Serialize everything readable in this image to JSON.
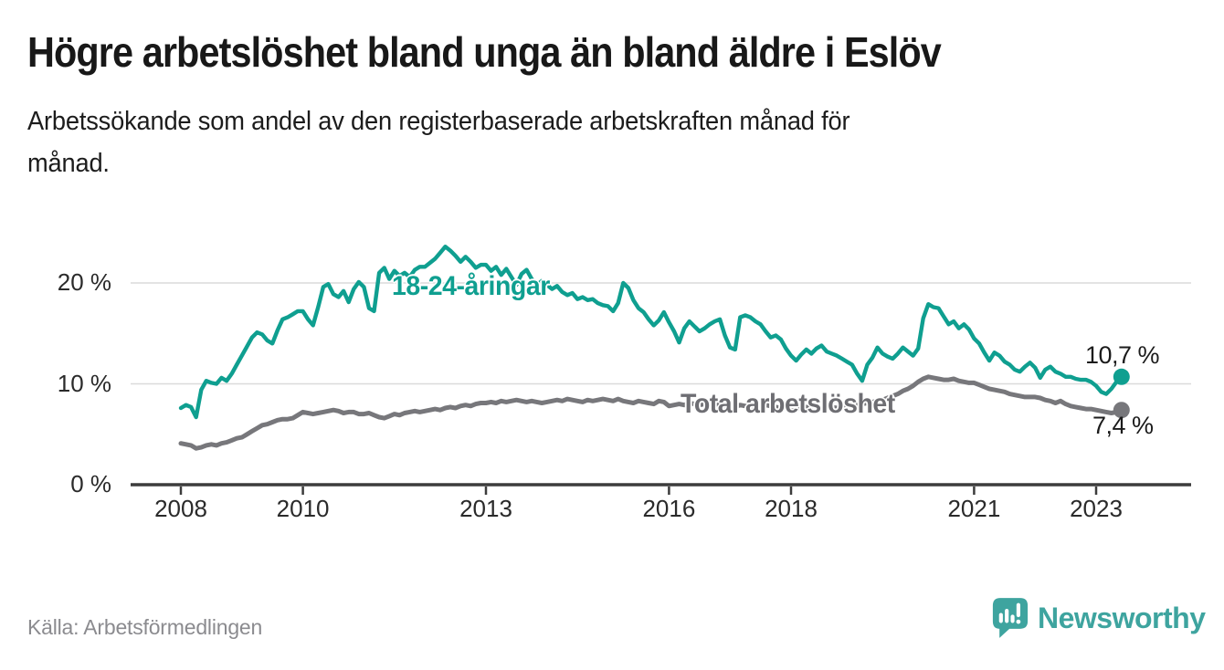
{
  "chart_data": {
    "type": "line",
    "title": "Högre arbetslöshet bland unga än bland äldre i Eslöv",
    "subtitle": "Arbetssökande som andel av den registerbaserade arbetskraften månad för månad.",
    "subtitle_lines": [
      "Arbetssökande som andel av den registerbaserade arbetskraften månad för",
      "månad."
    ],
    "source": "Källa: Arbetsförmedlingen",
    "x_unit": "month",
    "x_range": "Jan 2008 – mid 2023",
    "x_start_year": 2008,
    "x_tick_years": [
      2008,
      2010,
      2013,
      2016,
      2018,
      2021,
      2023
    ],
    "y_ticks": [
      {
        "value": 0,
        "label": "0 %"
      },
      {
        "value": 10,
        "label": "10 %"
      },
      {
        "value": 20,
        "label": "20 %"
      }
    ],
    "ylim": [
      0,
      24.5
    ],
    "grid": "horizontal-only",
    "grid_color": "#dadada",
    "axis_color": "#3c3c3c",
    "legend_position": "inline-labels-on-lines",
    "series": [
      {
        "id": "young",
        "label": "18-24-åringar",
        "color": "#0f9f90",
        "label_color": "#0f9f90",
        "line_width": 4.4,
        "end_label": "10,7 %",
        "end_value": 10.7,
        "values": [
          7.6,
          7.9,
          7.7,
          6.7,
          9.4,
          10.3,
          10.1,
          10.0,
          10.6,
          10.3,
          11.0,
          11.9,
          12.8,
          13.7,
          14.6,
          15.1,
          14.9,
          14.3,
          14.0,
          15.3,
          16.4,
          16.6,
          16.9,
          17.2,
          17.2,
          16.4,
          15.8,
          17.6,
          19.6,
          19.9,
          18.9,
          18.6,
          19.2,
          18.1,
          19.4,
          20.1,
          19.6,
          17.5,
          17.2,
          21.0,
          21.5,
          20.4,
          21.2,
          20.7,
          21.0,
          20.6,
          21.3,
          21.6,
          21.6,
          22.0,
          22.4,
          23.0,
          23.6,
          23.2,
          22.7,
          22.1,
          22.6,
          22.1,
          21.5,
          21.8,
          21.8,
          21.2,
          21.6,
          20.8,
          21.4,
          20.6,
          19.8,
          20.9,
          21.3,
          20.4,
          19.8,
          20.2,
          19.8,
          19.4,
          19.7,
          19.1,
          18.8,
          19.0,
          18.4,
          18.6,
          18.3,
          18.4,
          18.0,
          17.8,
          17.7,
          17.2,
          18.0,
          20.0,
          19.5,
          18.3,
          17.5,
          17.1,
          16.4,
          15.8,
          16.3,
          17.1,
          16.1,
          15.2,
          14.1,
          15.5,
          16.2,
          15.7,
          15.2,
          15.5,
          15.9,
          16.2,
          16.4,
          14.8,
          13.6,
          13.4,
          16.6,
          16.8,
          16.6,
          16.2,
          15.9,
          15.2,
          14.6,
          14.8,
          14.4,
          13.5,
          12.8,
          12.3,
          12.9,
          13.4,
          13.0,
          13.5,
          13.8,
          13.2,
          13.0,
          12.8,
          12.5,
          12.2,
          11.9,
          11.0,
          10.3,
          11.9,
          12.6,
          13.6,
          13.0,
          12.7,
          12.5,
          13.0,
          13.6,
          13.2,
          12.8,
          13.5,
          16.5,
          17.9,
          17.6,
          17.5,
          16.7,
          15.9,
          16.2,
          15.5,
          15.9,
          15.4,
          14.5,
          14.0,
          13.1,
          12.3,
          13.1,
          12.8,
          12.2,
          11.9,
          11.4,
          11.2,
          11.7,
          12.1,
          11.6,
          10.6,
          11.4,
          11.7,
          11.2,
          11.0,
          10.7,
          10.7,
          10.5,
          10.4,
          10.4,
          10.2,
          9.8,
          9.2,
          9.0,
          9.5,
          10.2,
          10.7
        ]
      },
      {
        "id": "total",
        "label": "Total arbetslöshet",
        "color": "#77777b",
        "label_color": "#6e6e73",
        "line_width": 5,
        "end_label": "7,4 %",
        "end_value": 7.4,
        "values": [
          4.1,
          4.0,
          3.9,
          3.6,
          3.7,
          3.9,
          4.0,
          3.9,
          4.1,
          4.2,
          4.4,
          4.6,
          4.7,
          5.0,
          5.3,
          5.6,
          5.9,
          6.0,
          6.2,
          6.4,
          6.5,
          6.5,
          6.6,
          6.9,
          7.2,
          7.1,
          7.0,
          7.1,
          7.2,
          7.3,
          7.4,
          7.3,
          7.1,
          7.2,
          7.2,
          7.0,
          7.0,
          7.1,
          6.9,
          6.7,
          6.6,
          6.8,
          7.0,
          6.9,
          7.1,
          7.2,
          7.3,
          7.2,
          7.3,
          7.4,
          7.5,
          7.4,
          7.6,
          7.7,
          7.6,
          7.8,
          7.9,
          7.8,
          8.0,
          8.1,
          8.1,
          8.2,
          8.1,
          8.3,
          8.2,
          8.3,
          8.4,
          8.3,
          8.2,
          8.3,
          8.2,
          8.1,
          8.2,
          8.3,
          8.4,
          8.3,
          8.5,
          8.4,
          8.3,
          8.2,
          8.4,
          8.3,
          8.4,
          8.5,
          8.4,
          8.3,
          8.5,
          8.3,
          8.2,
          8.1,
          8.3,
          8.2,
          8.1,
          8.0,
          8.3,
          8.2,
          7.8,
          7.9,
          8.0,
          7.9,
          8.1,
          8.0,
          7.9,
          8.0,
          8.1,
          8.0,
          7.9,
          7.8,
          7.8,
          7.7,
          7.9,
          7.8,
          7.7,
          7.9,
          8.0,
          7.9,
          7.8,
          7.7,
          7.6,
          7.7,
          7.6,
          7.5,
          7.6,
          7.7,
          7.5,
          7.6,
          7.5,
          7.6,
          7.7,
          7.6,
          7.7,
          7.8,
          7.8,
          7.9,
          8.0,
          8.1,
          8.2,
          8.3,
          8.4,
          8.6,
          8.8,
          9.0,
          9.3,
          9.5,
          9.8,
          10.2,
          10.5,
          10.7,
          10.6,
          10.5,
          10.4,
          10.4,
          10.5,
          10.3,
          10.2,
          10.1,
          10.1,
          9.9,
          9.7,
          9.5,
          9.4,
          9.3,
          9.2,
          9.0,
          8.9,
          8.8,
          8.7,
          8.7,
          8.7,
          8.6,
          8.4,
          8.3,
          8.1,
          8.3,
          8.0,
          7.8,
          7.7,
          7.6,
          7.5,
          7.5,
          7.4,
          7.3,
          7.2,
          7.1,
          7.2,
          7.4
        ]
      }
    ]
  },
  "footer": {
    "brand": "Newsworthy"
  },
  "theme": {
    "background": "#ffffff",
    "title_text": "#181818",
    "axis_text": "#2a2a2a",
    "source_text": "#8b8b8f",
    "logo_teal": "#3ea49f"
  }
}
